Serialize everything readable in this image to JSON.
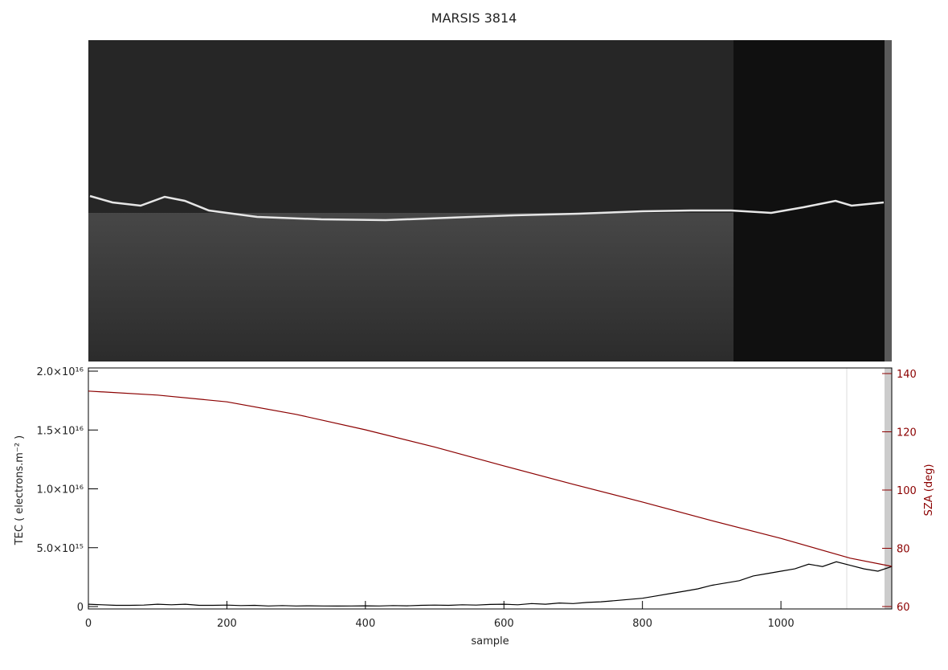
{
  "chart_data": {
    "type": "line",
    "title": "MARSIS 3814",
    "xlabel": "sample",
    "ylabel": "TEC ( electrons.m⁻² )",
    "y2label": "SZA (deg)",
    "xlim": [
      0,
      1160
    ],
    "xticks": [
      0,
      200,
      400,
      600,
      800,
      1000
    ],
    "ylim": [
      0,
      2e+16
    ],
    "yticks": [
      0,
      {
        "value": 5000000000000000.0,
        "label": "5.0×10¹⁵"
      },
      {
        "value": 1e+16,
        "label": "1.0×10¹⁶"
      },
      {
        "value": 1.5e+16,
        "label": "1.5×10¹⁶"
      },
      {
        "value": 2e+16,
        "label": "2.0×10¹⁶"
      }
    ],
    "y2lim": [
      60,
      140
    ],
    "y2ticks": [
      60,
      80,
      100,
      120,
      140
    ],
    "series": [
      {
        "color": "#000000",
        "x": [
          0,
          20,
          40,
          60,
          80,
          100,
          120,
          140,
          160,
          180,
          200,
          220,
          240,
          260,
          280,
          300,
          320,
          340,
          360,
          380,
          400,
          420,
          440,
          460,
          480,
          500,
          520,
          540,
          560,
          580,
          600,
          620,
          640,
          660,
          680,
          700,
          720,
          740,
          760,
          780,
          800,
          820,
          840,
          860,
          880,
          900,
          920,
          940,
          960,
          980,
          1000,
          1020,
          1040,
          1060,
          1080,
          1100,
          1120,
          1140,
          1160
        ],
        "values": [
          200000000000000.0,
          150000000000000.0,
          100000000000000.0,
          100000000000000.0,
          120000000000000.0,
          200000000000000.0,
          150000000000000.0,
          200000000000000.0,
          100000000000000.0,
          100000000000000.0,
          120000000000000.0,
          80000000000000.0,
          100000000000000.0,
          50000000000000.0,
          80000000000000.0,
          50000000000000.0,
          60000000000000.0,
          50000000000000.0,
          40000000000000.0,
          50000000000000.0,
          60000000000000.0,
          50000000000000.0,
          80000000000000.0,
          60000000000000.0,
          100000000000000.0,
          120000000000000.0,
          100000000000000.0,
          150000000000000.0,
          120000000000000.0,
          180000000000000.0,
          200000000000000.0,
          150000000000000.0,
          250000000000000.0,
          200000000000000.0,
          300000000000000.0,
          250000000000000.0,
          350000000000000.0,
          400000000000000.0,
          500000000000000.0,
          600000000000000.0,
          700000000000000.0,
          900000000000000.0,
          1100000000000000.0,
          1300000000000000.0,
          1500000000000000.0,
          1800000000000000.0,
          2000000000000000.0,
          2200000000000000.0,
          2600000000000000.0,
          2800000000000000.0,
          3000000000000000.0,
          3200000000000000.0,
          3600000000000000.0,
          3400000000000000.0,
          3800000000000000.0,
          3500000000000000.0,
          3200000000000000.0,
          3000000000000000.0,
          3400000000000000.0
        ]
      },
      {
        "color": "#8b0000",
        "axis": "y2",
        "x": [
          0,
          100,
          200,
          300,
          400,
          500,
          600,
          700,
          800,
          900,
          1000,
          1100,
          1160
        ],
        "values": [
          134,
          132.6,
          130.3,
          126,
          120.7,
          114.8,
          108.3,
          102,
          95.9,
          89.5,
          83.4,
          76.6,
          73.8
        ]
      }
    ]
  }
}
